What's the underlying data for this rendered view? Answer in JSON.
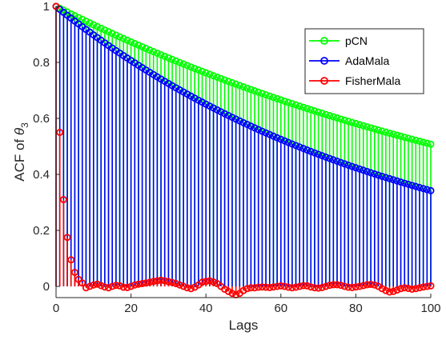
{
  "chart_data": {
    "type": "stem",
    "xlabel": "Lags",
    "ylabel": "ACF of θ3",
    "ylabel_parts": {
      "prefix": "ACF of ",
      "symbol": "θ",
      "subscript": "3"
    },
    "xlim": [
      0,
      100
    ],
    "ylim": [
      -0.04,
      1.0
    ],
    "xticks": [
      0,
      20,
      40,
      60,
      80,
      100
    ],
    "xtick_labels": [
      "0",
      "20",
      "40",
      "60",
      "80",
      "100"
    ],
    "yticks": [
      0,
      0.2,
      0.4,
      0.6,
      0.8,
      1
    ],
    "ytick_labels": [
      "0",
      "0.2",
      "0.4",
      "0.6",
      "0.8",
      "1"
    ],
    "legend_position": "top-right",
    "grid": false,
    "series": [
      {
        "name": "pCN",
        "color": "#00ff00",
        "model": {
          "kind": "exponential",
          "start": 1.0,
          "end": 0.508,
          "lag_max": 100
        }
      },
      {
        "name": "AdaMala",
        "color": "#0000ff",
        "model": {
          "kind": "exponential",
          "start": 1.0,
          "end": 0.342,
          "lag_max": 100
        }
      },
      {
        "name": "FisherMala",
        "color": "#ff0000",
        "values": [
          1.0,
          0.55,
          0.31,
          0.175,
          0.095,
          0.05,
          0.025,
          0.012,
          -0.005,
          0.0,
          0.005,
          0.008,
          0.003,
          -0.002,
          -0.005,
          0.0,
          0.004,
          0.002,
          -0.003,
          -0.004,
          0.0,
          0.005,
          0.008,
          0.01,
          0.012,
          0.015,
          0.018,
          0.02,
          0.022,
          0.02,
          0.017,
          0.014,
          0.01,
          0.005,
          0.0,
          -0.005,
          -0.008,
          -0.003,
          0.005,
          0.015,
          0.018,
          0.02,
          0.016,
          0.01,
          0.0,
          -0.01,
          -0.018,
          -0.025,
          -0.03,
          -0.025,
          -0.015,
          -0.008,
          -0.005,
          -0.005,
          -0.003,
          -0.002,
          -0.003,
          -0.004,
          -0.002,
          0.0,
          0.002,
          0.0,
          -0.003,
          -0.005,
          -0.003,
          0.0,
          0.003,
          0.002,
          -0.002,
          -0.005,
          -0.006,
          -0.004,
          0.0,
          0.004,
          0.006,
          0.006,
          0.004,
          0.0,
          -0.003,
          -0.004,
          -0.002,
          0.0,
          0.003,
          0.006,
          0.007,
          0.005,
          0.0,
          -0.008,
          -0.015,
          -0.02,
          -0.018,
          -0.013,
          -0.008,
          -0.005,
          -0.007,
          -0.01,
          -0.008,
          -0.005,
          -0.002,
          0.0,
          0.002
        ]
      }
    ]
  }
}
